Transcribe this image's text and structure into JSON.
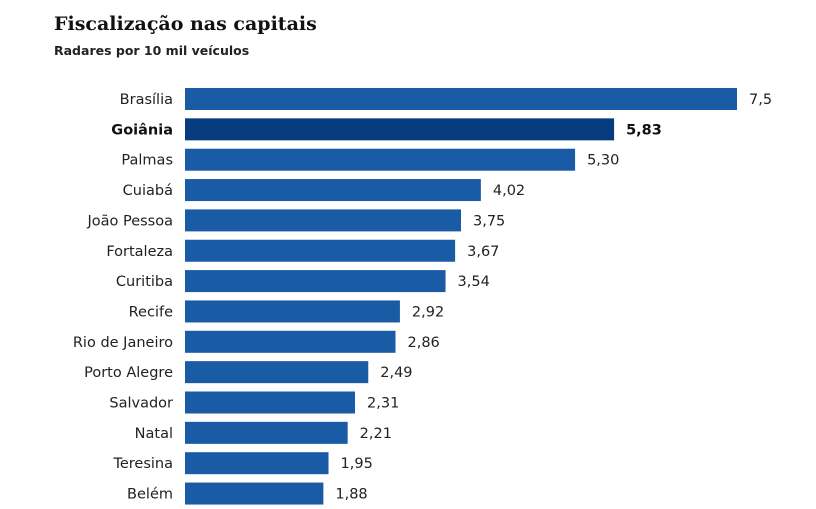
{
  "chart_data": {
    "type": "bar",
    "orientation": "horizontal",
    "title": "Fiscalização nas capitais",
    "subtitle": "Radares por 10 mil veículos",
    "categories": [
      "Brasília",
      "Goiânia",
      "Palmas",
      "Cuiabá",
      "João Pessoa",
      "Fortaleza",
      "Curitiba",
      "Recife",
      "Rio de Janeiro",
      "Porto Alegre",
      "Salvador",
      "Natal",
      "Teresina",
      "Belém"
    ],
    "values": [
      7.5,
      5.83,
      5.3,
      4.02,
      3.75,
      3.67,
      3.54,
      2.92,
      2.86,
      2.49,
      2.31,
      2.21,
      1.95,
      1.88
    ],
    "value_labels": [
      "7,5",
      "5,83",
      "5,30",
      "4,02",
      "3,75",
      "3,67",
      "3,54",
      "2,92",
      "2,86",
      "2,49",
      "2,31",
      "2,21",
      "1,95",
      "1,88"
    ],
    "highlight": "Goiânia",
    "xlim": [
      0,
      7.5
    ],
    "grid": false,
    "colors": {
      "bar": "#1a5ba6",
      "highlight": "#063b80"
    }
  }
}
